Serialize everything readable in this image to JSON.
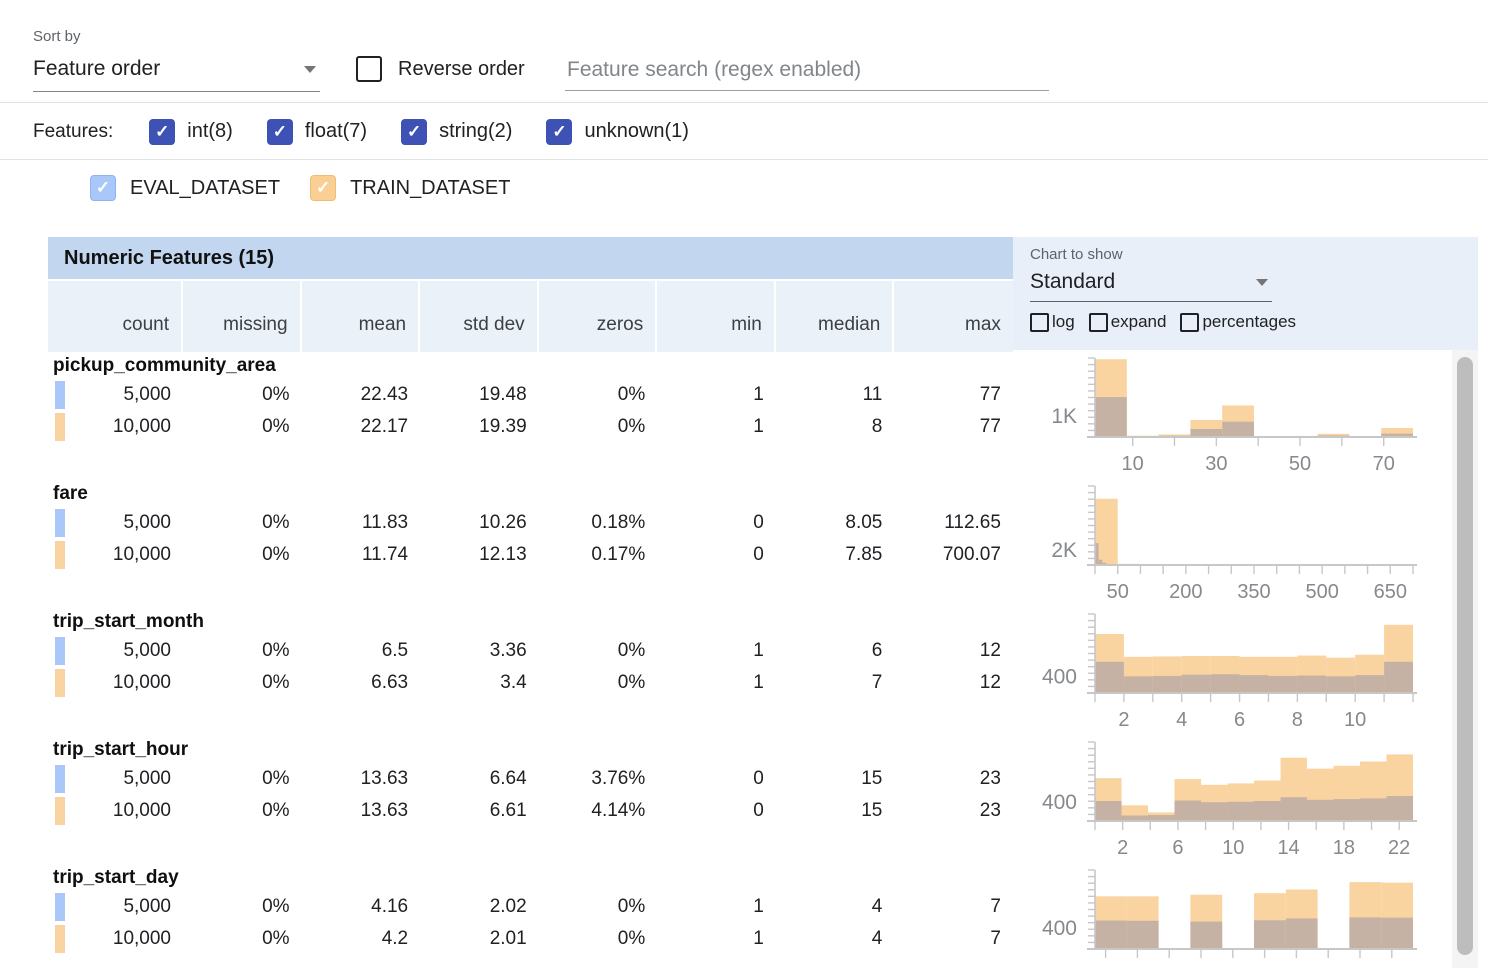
{
  "controls": {
    "sort_by_label": "Sort by",
    "sort_by_value": "Feature order",
    "reverse_order_label": "Reverse order",
    "search_placeholder": "Feature search (regex enabled)"
  },
  "features_filter": {
    "label": "Features:",
    "types": [
      {
        "label": "int(8)",
        "checked": true
      },
      {
        "label": "float(7)",
        "checked": true
      },
      {
        "label": "string(2)",
        "checked": true
      },
      {
        "label": "unknown(1)",
        "checked": true
      }
    ]
  },
  "datasets": [
    {
      "label": "EVAL_DATASET",
      "color": "#a9c7f9",
      "checked": true
    },
    {
      "label": "TRAIN_DATASET",
      "color": "#f9cf94",
      "checked": true
    }
  ],
  "table": {
    "title": "Numeric Features (15)",
    "columns": [
      "count",
      "missing",
      "mean",
      "std dev",
      "zeros",
      "min",
      "median",
      "max"
    ],
    "rows": [
      {
        "feature": "pickup_community_area",
        "eval": [
          "5,000",
          "0%",
          "22.43",
          "19.48",
          "0%",
          "1",
          "11",
          "77"
        ],
        "train": [
          "10,000",
          "0%",
          "22.17",
          "19.39",
          "0%",
          "1",
          "8",
          "77"
        ]
      },
      {
        "feature": "fare",
        "eval": [
          "5,000",
          "0%",
          "11.83",
          "10.26",
          "0.18%",
          "0",
          "8.05",
          "112.65"
        ],
        "train": [
          "10,000",
          "0%",
          "11.74",
          "12.13",
          "0.17%",
          "0",
          "7.85",
          "700.07"
        ]
      },
      {
        "feature": "trip_start_month",
        "eval": [
          "5,000",
          "0%",
          "6.5",
          "3.36",
          "0%",
          "1",
          "6",
          "12"
        ],
        "train": [
          "10,000",
          "0%",
          "6.63",
          "3.4",
          "0%",
          "1",
          "7",
          "12"
        ]
      },
      {
        "feature": "trip_start_hour",
        "eval": [
          "5,000",
          "0%",
          "13.63",
          "6.64",
          "3.76%",
          "0",
          "15",
          "23"
        ],
        "train": [
          "10,000",
          "0%",
          "13.63",
          "6.61",
          "4.14%",
          "0",
          "15",
          "23"
        ]
      },
      {
        "feature": "trip_start_day",
        "eval": [
          "5,000",
          "0%",
          "4.16",
          "2.02",
          "0%",
          "1",
          "4",
          "7"
        ],
        "train": [
          "10,000",
          "0%",
          "4.2",
          "2.01",
          "0%",
          "1",
          "4",
          "7"
        ]
      }
    ]
  },
  "chart_controls": {
    "label": "Chart to show",
    "value": "Standard",
    "options": [
      {
        "label": "log",
        "checked": false
      },
      {
        "label": "expand",
        "checked": false
      },
      {
        "label": "percentages",
        "checked": false
      }
    ]
  },
  "chart_data": [
    {
      "type": "histogram",
      "feature": "pickup_community_area",
      "ylabel": "1K",
      "yref": 1000,
      "ymax": 3760,
      "xmin": 1,
      "xmax": 77,
      "xticks": [
        10,
        30,
        50,
        70
      ],
      "xtick_step": 10,
      "series": [
        {
          "name": "TRAIN_DATASET",
          "bins": [
            {
              "x0": 1,
              "x1": 8.6,
              "v": 3700
            },
            {
              "x0": 8.6,
              "x1": 16.2,
              "v": 60
            },
            {
              "x0": 16.2,
              "x1": 23.8,
              "v": 120
            },
            {
              "x0": 23.8,
              "x1": 31.4,
              "v": 810
            },
            {
              "x0": 31.4,
              "x1": 39,
              "v": 1500
            },
            {
              "x0": 39,
              "x1": 46.6,
              "v": 40
            },
            {
              "x0": 46.6,
              "x1": 54.2,
              "v": 50
            },
            {
              "x0": 54.2,
              "x1": 61.8,
              "v": 150
            },
            {
              "x0": 61.8,
              "x1": 69.4,
              "v": 40
            },
            {
              "x0": 69.4,
              "x1": 77,
              "v": 430
            }
          ]
        },
        {
          "name": "EVAL_DATASET",
          "bins": [
            {
              "x0": 1,
              "x1": 8.6,
              "v": 1900
            },
            {
              "x0": 8.6,
              "x1": 16.2,
              "v": 30
            },
            {
              "x0": 16.2,
              "x1": 23.8,
              "v": 60
            },
            {
              "x0": 23.8,
              "x1": 31.4,
              "v": 380
            },
            {
              "x0": 31.4,
              "x1": 39,
              "v": 730
            },
            {
              "x0": 39,
              "x1": 46.6,
              "v": 20
            },
            {
              "x0": 46.6,
              "x1": 54.2,
              "v": 25
            },
            {
              "x0": 54.2,
              "x1": 61.8,
              "v": 70
            },
            {
              "x0": 61.8,
              "x1": 69.4,
              "v": 20
            },
            {
              "x0": 69.4,
              "x1": 77,
              "v": 160
            }
          ]
        }
      ]
    },
    {
      "type": "histogram",
      "feature": "fare",
      "ylabel": "2K",
      "yref": 2000,
      "ymax": 10500,
      "xmin": 0,
      "xmax": 700,
      "xticks": [
        50,
        200,
        350,
        500,
        650
      ],
      "xtick_step": 50,
      "series": [
        {
          "name": "TRAIN_DATASET",
          "bins": [
            {
              "x0": 0,
              "x1": 50,
              "v": 8800
            },
            {
              "x0": 50,
              "x1": 100,
              "v": 150
            },
            {
              "x0": 100,
              "x1": 150,
              "v": 40
            },
            {
              "x0": 150,
              "x1": 200,
              "v": 20
            },
            {
              "x0": 200,
              "x1": 250,
              "v": 10
            },
            {
              "x0": 250,
              "x1": 300,
              "v": 6
            },
            {
              "x0": 300,
              "x1": 350,
              "v": 4
            },
            {
              "x0": 350,
              "x1": 400,
              "v": 3
            },
            {
              "x0": 400,
              "x1": 450,
              "v": 2
            },
            {
              "x0": 450,
              "x1": 500,
              "v": 2
            },
            {
              "x0": 500,
              "x1": 550,
              "v": 1
            },
            {
              "x0": 550,
              "x1": 600,
              "v": 1
            },
            {
              "x0": 600,
              "x1": 650,
              "v": 1
            },
            {
              "x0": 650,
              "x1": 700,
              "v": 2
            }
          ]
        },
        {
          "name": "EVAL_DATASET",
          "bins": [
            {
              "x0": 0,
              "x1": 8,
              "v": 2900
            },
            {
              "x0": 8,
              "x1": 16,
              "v": 700
            },
            {
              "x0": 16,
              "x1": 24,
              "v": 300
            },
            {
              "x0": 24,
              "x1": 32,
              "v": 150
            },
            {
              "x0": 32,
              "x1": 40,
              "v": 80
            },
            {
              "x0": 40,
              "x1": 48,
              "v": 40
            }
          ]
        }
      ]
    },
    {
      "type": "histogram",
      "feature": "trip_start_month",
      "ylabel": "400",
      "yref": 400,
      "ymax": 1900,
      "xmin": 1,
      "xmax": 12,
      "xticks": [
        2,
        4,
        6,
        8,
        10
      ],
      "xtick_step": 1,
      "series": [
        {
          "name": "TRAIN_DATASET",
          "bins": [
            {
              "x0": 1,
              "x1": 2,
              "v": 1420
            },
            {
              "x0": 2,
              "x1": 3,
              "v": 870
            },
            {
              "x0": 3,
              "x1": 4,
              "v": 880
            },
            {
              "x0": 4,
              "x1": 5,
              "v": 890
            },
            {
              "x0": 5,
              "x1": 6,
              "v": 890
            },
            {
              "x0": 6,
              "x1": 7,
              "v": 870
            },
            {
              "x0": 7,
              "x1": 8,
              "v": 870
            },
            {
              "x0": 8,
              "x1": 9,
              "v": 900
            },
            {
              "x0": 9,
              "x1": 10,
              "v": 850
            },
            {
              "x0": 10,
              "x1": 11,
              "v": 920
            },
            {
              "x0": 11,
              "x1": 12,
              "v": 1640
            }
          ]
        },
        {
          "name": "EVAL_DATASET",
          "bins": [
            {
              "x0": 1,
              "x1": 2,
              "v": 750
            },
            {
              "x0": 2,
              "x1": 3,
              "v": 400
            },
            {
              "x0": 3,
              "x1": 4,
              "v": 410
            },
            {
              "x0": 4,
              "x1": 5,
              "v": 440
            },
            {
              "x0": 5,
              "x1": 6,
              "v": 450
            },
            {
              "x0": 6,
              "x1": 7,
              "v": 430
            },
            {
              "x0": 7,
              "x1": 8,
              "v": 410
            },
            {
              "x0": 8,
              "x1": 9,
              "v": 420
            },
            {
              "x0": 9,
              "x1": 10,
              "v": 400
            },
            {
              "x0": 10,
              "x1": 11,
              "v": 430
            },
            {
              "x0": 11,
              "x1": 12,
              "v": 750
            }
          ]
        }
      ]
    },
    {
      "type": "histogram",
      "feature": "trip_start_hour",
      "ylabel": "400",
      "yref": 400,
      "ymax": 1660,
      "xmin": 0,
      "xmax": 23,
      "xticks": [
        2,
        6,
        10,
        14,
        18,
        22
      ],
      "xtick_step": 2,
      "series": [
        {
          "name": "TRAIN_DATASET",
          "bins": [
            {
              "x0": 0,
              "x1": 1.92,
              "v": 900
            },
            {
              "x0": 1.92,
              "x1": 3.83,
              "v": 330
            },
            {
              "x0": 3.83,
              "x1": 5.75,
              "v": 180
            },
            {
              "x0": 5.75,
              "x1": 7.67,
              "v": 880
            },
            {
              "x0": 7.67,
              "x1": 9.58,
              "v": 760
            },
            {
              "x0": 9.58,
              "x1": 11.5,
              "v": 790
            },
            {
              "x0": 11.5,
              "x1": 13.42,
              "v": 850
            },
            {
              "x0": 13.42,
              "x1": 15.33,
              "v": 1330
            },
            {
              "x0": 15.33,
              "x1": 17.25,
              "v": 1100
            },
            {
              "x0": 17.25,
              "x1": 19.17,
              "v": 1160
            },
            {
              "x0": 19.17,
              "x1": 21.08,
              "v": 1250
            },
            {
              "x0": 21.08,
              "x1": 23,
              "v": 1400
            }
          ]
        },
        {
          "name": "EVAL_DATASET",
          "bins": [
            {
              "x0": 0,
              "x1": 1.92,
              "v": 420
            },
            {
              "x0": 1.92,
              "x1": 3.83,
              "v": 115
            },
            {
              "x0": 3.83,
              "x1": 5.75,
              "v": 125
            },
            {
              "x0": 5.75,
              "x1": 7.67,
              "v": 430
            },
            {
              "x0": 7.67,
              "x1": 9.58,
              "v": 395
            },
            {
              "x0": 9.58,
              "x1": 11.5,
              "v": 405
            },
            {
              "x0": 11.5,
              "x1": 13.42,
              "v": 420
            },
            {
              "x0": 13.42,
              "x1": 15.33,
              "v": 500
            },
            {
              "x0": 15.33,
              "x1": 17.25,
              "v": 445
            },
            {
              "x0": 17.25,
              "x1": 19.17,
              "v": 460
            },
            {
              "x0": 19.17,
              "x1": 21.08,
              "v": 475
            },
            {
              "x0": 21.08,
              "x1": 23,
              "v": 525
            }
          ]
        }
      ]
    },
    {
      "type": "histogram",
      "feature": "trip_start_day",
      "ylabel": "400",
      "yref": 400,
      "ymax": 1500,
      "xmin": 1,
      "xmax": 7,
      "xticks": [],
      "xtick_step": 0.6,
      "series": [
        {
          "name": "TRAIN_DATASET",
          "bins": [
            {
              "x0": 1,
              "x1": 1.6,
              "v": 1000
            },
            {
              "x0": 1.6,
              "x1": 2.2,
              "v": 1000
            },
            {
              "x0": 2.8,
              "x1": 3.4,
              "v": 1030
            },
            {
              "x0": 4,
              "x1": 4.6,
              "v": 1060
            },
            {
              "x0": 4.6,
              "x1": 5.2,
              "v": 1130
            },
            {
              "x0": 5.8,
              "x1": 6.4,
              "v": 1270
            },
            {
              "x0": 6.4,
              "x1": 7,
              "v": 1260
            }
          ]
        },
        {
          "name": "EVAL_DATASET",
          "bins": [
            {
              "x0": 1,
              "x1": 1.6,
              "v": 540
            },
            {
              "x0": 1.6,
              "x1": 2.2,
              "v": 535
            },
            {
              "x0": 2.8,
              "x1": 3.4,
              "v": 520
            },
            {
              "x0": 4,
              "x1": 4.6,
              "v": 545
            },
            {
              "x0": 4.6,
              "x1": 5.2,
              "v": 580
            },
            {
              "x0": 5.8,
              "x1": 6.4,
              "v": 600
            },
            {
              "x0": 6.4,
              "x1": 7,
              "v": 595
            }
          ]
        }
      ]
    }
  ],
  "colors": {
    "accent_indigo": "#3e51b5",
    "eval_blue": "#a9c7f9",
    "train_orange": "#f9d3a0",
    "overlap_taupe": "#c6b1a5",
    "table_title_bg": "#c3d6ef",
    "header_cell_bg": "#ebf1f8",
    "chart_panel_bg": "#e9eff8",
    "axis_gray": "#c7c7c7",
    "tick_label_gray": "#85898e"
  }
}
